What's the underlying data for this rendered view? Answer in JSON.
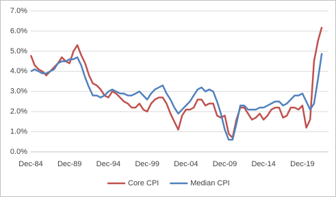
{
  "chart_data": {
    "type": "line",
    "categories": [
      "Dec-84",
      null,
      null,
      null,
      null,
      null,
      null,
      null,
      null,
      null,
      "Dec-89",
      null,
      null,
      null,
      null,
      null,
      null,
      null,
      null,
      null,
      "Dec-94",
      null,
      null,
      null,
      null,
      null,
      null,
      null,
      null,
      null,
      "Dec-99",
      null,
      null,
      null,
      null,
      null,
      null,
      null,
      null,
      null,
      "Dec-04",
      null,
      null,
      null,
      null,
      null,
      null,
      null,
      null,
      null,
      "Dec-09",
      null,
      null,
      null,
      null,
      null,
      null,
      null,
      null,
      null,
      "Dec-14",
      null,
      null,
      null,
      null,
      null,
      null,
      null,
      null,
      null,
      "Dec-19",
      null,
      null,
      null,
      null,
      null
    ],
    "series": [
      {
        "name": "Core CPI",
        "color": "#c0504d",
        "values": [
          4.8,
          4.3,
          4.1,
          4.0,
          3.8,
          4.0,
          4.2,
          4.4,
          4.7,
          4.5,
          4.4,
          5.0,
          5.3,
          4.8,
          4.4,
          3.8,
          3.4,
          3.3,
          3.1,
          2.8,
          2.7,
          3.0,
          2.9,
          2.7,
          2.5,
          2.4,
          2.2,
          2.2,
          2.4,
          2.1,
          2.0,
          2.4,
          2.6,
          2.7,
          2.7,
          2.4,
          1.9,
          1.5,
          1.1,
          1.8,
          2.1,
          2.1,
          2.2,
          2.6,
          2.6,
          2.3,
          2.4,
          2.4,
          1.8,
          1.7,
          1.8,
          0.9,
          0.7,
          1.6,
          2.2,
          2.2,
          1.9,
          1.6,
          1.7,
          1.9,
          1.6,
          1.8,
          2.1,
          2.2,
          2.2,
          1.7,
          1.8,
          2.2,
          2.2,
          2.1,
          2.3,
          1.2,
          1.6,
          4.5,
          5.5,
          6.2
        ]
      },
      {
        "name": "Median CPI",
        "color": "#4f81bd",
        "values": [
          4.0,
          4.1,
          4.0,
          3.9,
          3.9,
          4.0,
          4.1,
          4.4,
          4.5,
          4.5,
          4.6,
          4.6,
          4.7,
          4.3,
          3.7,
          3.2,
          2.8,
          2.8,
          2.7,
          2.8,
          3.0,
          3.1,
          3.0,
          2.9,
          2.9,
          2.8,
          2.8,
          2.9,
          3.0,
          2.8,
          2.6,
          2.9,
          3.1,
          3.2,
          3.3,
          2.9,
          2.6,
          2.2,
          1.9,
          2.1,
          2.3,
          2.5,
          2.8,
          3.1,
          3.2,
          3.0,
          3.1,
          3.0,
          2.5,
          1.9,
          1.1,
          0.6,
          0.6,
          1.4,
          2.3,
          2.3,
          2.1,
          2.1,
          2.1,
          2.2,
          2.2,
          2.3,
          2.4,
          2.5,
          2.5,
          2.3,
          2.4,
          2.6,
          2.8,
          2.8,
          2.9,
          2.5,
          2.1,
          2.4,
          3.6,
          4.9
        ]
      }
    ],
    "ylim": [
      0,
      7
    ],
    "yticks": [
      {
        "value": 0,
        "label": "0.0%"
      },
      {
        "value": 1,
        "label": "1.0%"
      },
      {
        "value": 2,
        "label": "2.0%"
      },
      {
        "value": 3,
        "label": "3.0%"
      },
      {
        "value": 4,
        "label": "4.0%"
      },
      {
        "value": 5,
        "label": "5.0%"
      },
      {
        "value": 6,
        "label": "6.0%"
      },
      {
        "value": 7,
        "label": "7.0%"
      }
    ],
    "grid": true,
    "legend": "bottom"
  }
}
